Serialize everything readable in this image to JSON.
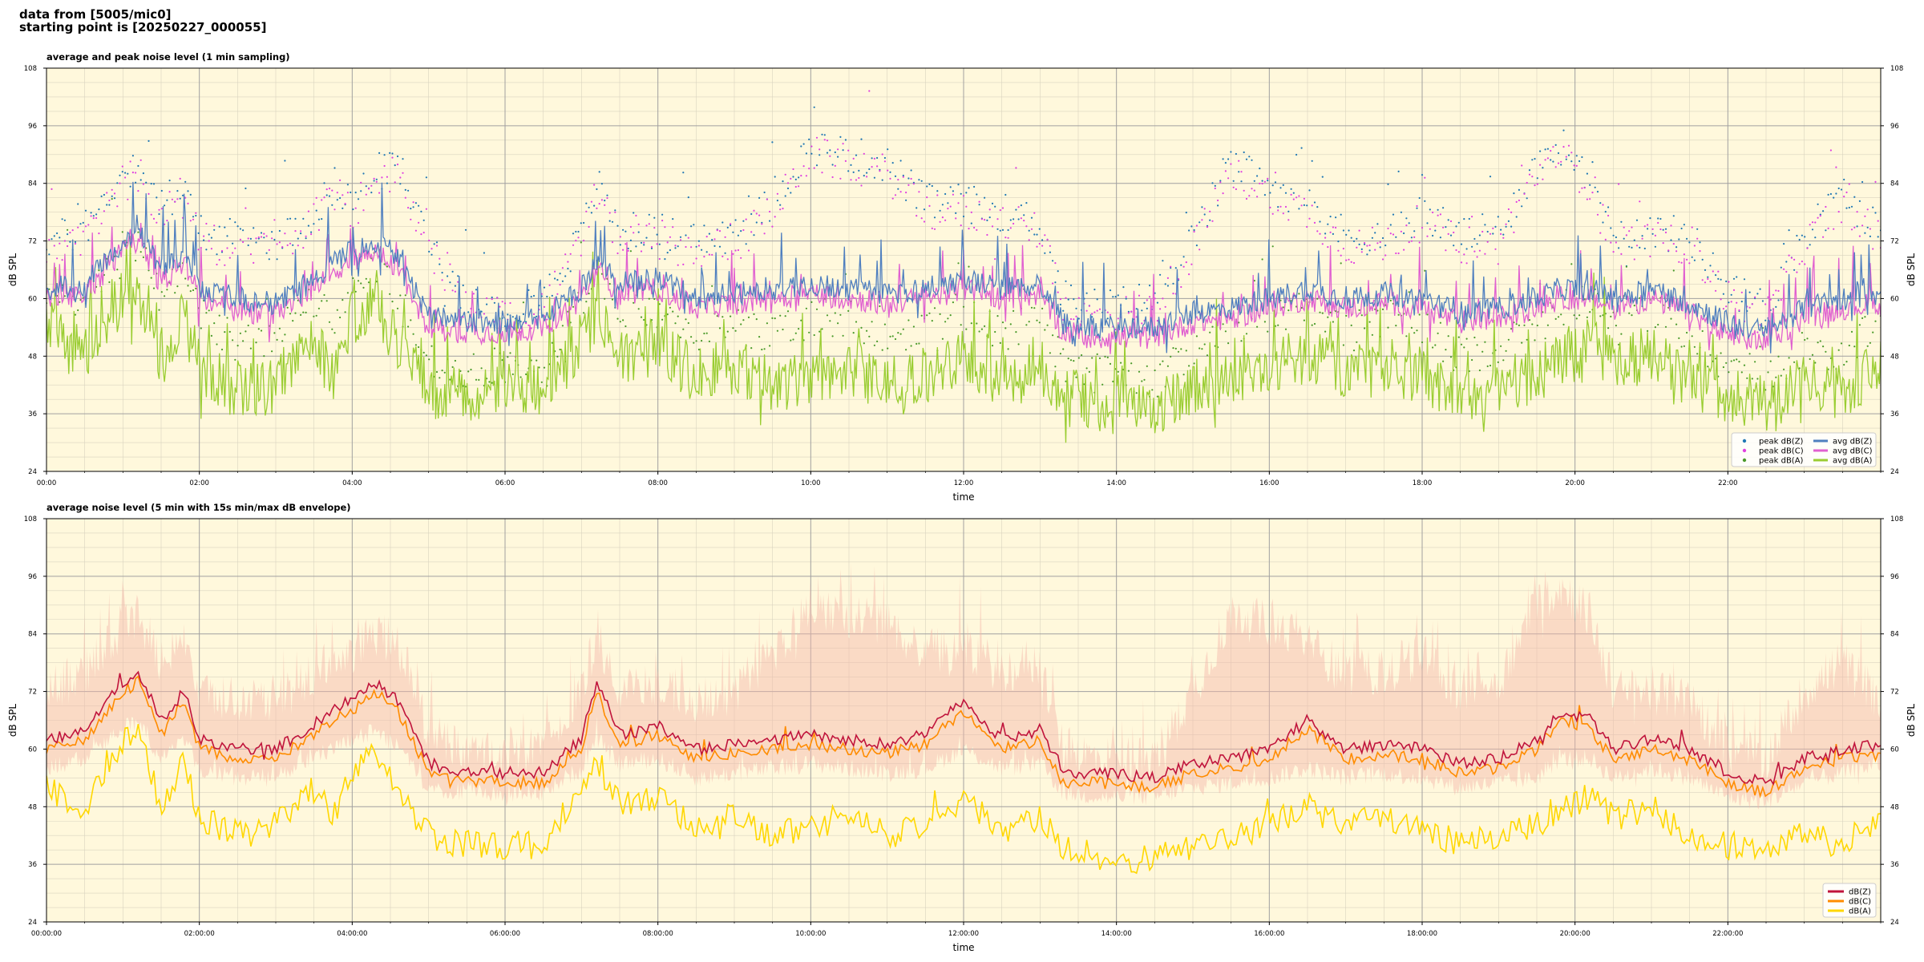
{
  "header": {
    "line1": "data from [5005/mic0]",
    "line2": "starting point is [20250227_000055]"
  },
  "colors": {
    "background": "#fff8dc",
    "grid_major": "#a0a0a0",
    "grid_minor": "#d9d3bf",
    "peak_z": "#1f77b4",
    "peak_c": "#e040e0",
    "peak_a": "#4a9a2a",
    "avg_z": "#4f7fbf",
    "avg_c": "#e060d0",
    "avg_a": "#9acd32",
    "line_z": "#c0143c",
    "line_c": "#ff8c00",
    "line_a": "#ffd700",
    "envelope": "#f4b6a8"
  },
  "chart_data": [
    {
      "type": "line",
      "title": "average and peak noise level (1 min sampling)",
      "xlabel": "time",
      "ylabel": "dB SPL",
      "ylim": [
        24,
        108
      ],
      "yticks": [
        24,
        36,
        48,
        60,
        72,
        84,
        96,
        108
      ],
      "xlim": [
        0,
        24
      ],
      "xticks": [
        0,
        2,
        4,
        6,
        8,
        10,
        12,
        14,
        16,
        18,
        20,
        22
      ],
      "xtick_labels": [
        "00:00",
        "02:00",
        "04:00",
        "06:00",
        "08:00",
        "10:00",
        "12:00",
        "14:00",
        "16:00",
        "18:00",
        "20:00",
        "22:00"
      ],
      "grid": true,
      "legend": {
        "position": "bottom-right",
        "columns": 2,
        "entries": [
          "peak dB(Z)",
          "peak dB(C)",
          "peak dB(A)",
          "avg dB(Z)",
          "avg dB(C)",
          "avg dB(A)"
        ]
      },
      "x_hours": [
        0,
        0.5,
        1.0,
        1.2,
        1.5,
        1.8,
        2.0,
        2.5,
        3.0,
        3.4,
        3.8,
        4.0,
        4.3,
        4.6,
        5.0,
        5.5,
        6.0,
        6.5,
        7.0,
        7.2,
        7.5,
        8.0,
        8.5,
        9.0,
        9.5,
        10.0,
        10.5,
        11.0,
        11.5,
        12.0,
        12.5,
        13.0,
        13.3,
        13.8,
        14.5,
        15.0,
        15.5,
        16.0,
        16.5,
        17.0,
        17.5,
        18.0,
        18.5,
        19.0,
        19.5,
        19.8,
        20.2,
        20.5,
        21.0,
        21.5,
        22.0,
        22.5,
        23.0,
        23.5,
        24.0
      ],
      "series": [
        {
          "name": "avg dB(Z)",
          "values": [
            62,
            63,
            72,
            74,
            66,
            70,
            62,
            60,
            59,
            63,
            68,
            70,
            72,
            69,
            56,
            55,
            55,
            56,
            62,
            68,
            63,
            64,
            60,
            61,
            62,
            63,
            62,
            61,
            62,
            64,
            62,
            63,
            55,
            54,
            54,
            57,
            58,
            60,
            62,
            60,
            61,
            60,
            57,
            58,
            60,
            62,
            62,
            60,
            62,
            59,
            55,
            53,
            58,
            60,
            61
          ]
        },
        {
          "name": "avg dB(C)",
          "values": [
            60,
            61,
            70,
            72,
            63,
            68,
            60,
            57,
            57,
            61,
            66,
            68,
            70,
            66,
            54,
            53,
            53,
            54,
            60,
            66,
            61,
            62,
            58,
            59,
            60,
            61,
            60,
            59,
            60,
            62,
            60,
            61,
            53,
            52,
            52,
            55,
            56,
            58,
            60,
            58,
            59,
            58,
            55,
            56,
            58,
            60,
            60,
            58,
            60,
            57,
            52,
            51,
            56,
            58,
            59
          ]
        },
        {
          "name": "avg dB(A)",
          "values": [
            54,
            48,
            60,
            62,
            48,
            56,
            46,
            40,
            42,
            52,
            44,
            56,
            60,
            50,
            41,
            40,
            42,
            40,
            52,
            56,
            48,
            50,
            44,
            46,
            42,
            44,
            46,
            42,
            44,
            48,
            42,
            46,
            40,
            38,
            37,
            42,
            44,
            46,
            48,
            44,
            46,
            44,
            40,
            42,
            44,
            48,
            50,
            46,
            48,
            42,
            40,
            38,
            42,
            40,
            46
          ]
        },
        {
          "name": "peak dB(Z)",
          "values": [
            72,
            74,
            86,
            88,
            80,
            82,
            74,
            72,
            72,
            76,
            84,
            80,
            86,
            88,
            72,
            60,
            58,
            60,
            73,
            84,
            74,
            74,
            72,
            73,
            80,
            92,
            90,
            88,
            80,
            80,
            78,
            76,
            60,
            58,
            60,
            72,
            88,
            84,
            80,
            73,
            73,
            78,
            73,
            74,
            88,
            92,
            86,
            74,
            74,
            73,
            62,
            58,
            73,
            82,
            74
          ]
        },
        {
          "name": "peak dB(C)",
          "values": [
            70,
            72,
            84,
            86,
            78,
            80,
            72,
            70,
            70,
            74,
            82,
            78,
            84,
            86,
            70,
            58,
            56,
            58,
            71,
            82,
            72,
            72,
            70,
            71,
            78,
            90,
            88,
            86,
            78,
            78,
            76,
            74,
            58,
            56,
            58,
            70,
            86,
            82,
            78,
            71,
            71,
            76,
            71,
            72,
            86,
            90,
            84,
            72,
            72,
            71,
            60,
            56,
            71,
            80,
            72
          ]
        },
        {
          "name": "peak dB(A)",
          "values": [
            62,
            60,
            70,
            72,
            60,
            66,
            58,
            50,
            52,
            60,
            56,
            64,
            68,
            60,
            48,
            45,
            46,
            44,
            60,
            64,
            58,
            58,
            52,
            54,
            52,
            56,
            56,
            52,
            54,
            58,
            52,
            56,
            46,
            44,
            42,
            50,
            54,
            56,
            58,
            54,
            56,
            54,
            48,
            50,
            54,
            58,
            60,
            56,
            58,
            52,
            46,
            44,
            50,
            48,
            56
          ]
        }
      ]
    },
    {
      "type": "line",
      "title": "average noise level (5 min with 15s min/max dB envelope)",
      "xlabel": "time",
      "ylabel": "dB SPL",
      "ylim": [
        24,
        108
      ],
      "yticks": [
        24,
        36,
        48,
        60,
        72,
        84,
        96,
        108
      ],
      "xlim": [
        0,
        24
      ],
      "xticks": [
        0,
        2,
        4,
        6,
        8,
        10,
        12,
        14,
        16,
        18,
        20,
        22
      ],
      "xtick_labels": [
        "00:00:00",
        "02:00:00",
        "04:00:00",
        "06:00:00",
        "08:00:00",
        "10:00:00",
        "12:00:00",
        "14:00:00",
        "16:00:00",
        "18:00:00",
        "20:00:00",
        "22:00:00"
      ],
      "grid": true,
      "legend": {
        "position": "bottom-right",
        "columns": 1,
        "entries": [
          "dB(Z)",
          "dB(C)",
          "dB(A)"
        ]
      },
      "x_hours": [
        0,
        0.5,
        1.0,
        1.2,
        1.5,
        1.8,
        2.0,
        2.5,
        3.0,
        3.4,
        3.8,
        4.0,
        4.3,
        4.6,
        5.0,
        5.5,
        6.0,
        6.5,
        7.0,
        7.2,
        7.5,
        8.0,
        8.5,
        9.0,
        9.5,
        10.0,
        10.5,
        11.0,
        11.5,
        12.0,
        12.5,
        13.0,
        13.3,
        13.8,
        14.5,
        15.0,
        15.5,
        16.0,
        16.5,
        17.0,
        17.5,
        18.0,
        18.5,
        19.0,
        19.5,
        19.8,
        20.2,
        20.5,
        21.0,
        21.5,
        22.0,
        22.5,
        23.0,
        23.5,
        24.0
      ],
      "series": [
        {
          "name": "dB(Z)",
          "values": [
            62,
            64,
            74,
            76,
            66,
            72,
            62,
            60,
            60,
            64,
            69,
            70,
            74,
            70,
            57,
            55,
            55,
            55,
            62,
            74,
            63,
            65,
            60,
            61,
            62,
            63,
            62,
            61,
            63,
            70,
            62,
            64,
            55,
            55,
            54,
            57,
            58,
            60,
            66,
            60,
            61,
            60,
            57,
            58,
            62,
            68,
            66,
            60,
            62,
            60,
            55,
            53,
            58,
            60,
            61
          ]
        },
        {
          "name": "dB(C)",
          "values": [
            60,
            62,
            72,
            74,
            64,
            70,
            60,
            58,
            58,
            62,
            67,
            68,
            72,
            68,
            55,
            53,
            53,
            53,
            60,
            72,
            61,
            63,
            58,
            59,
            60,
            61,
            60,
            59,
            61,
            68,
            60,
            62,
            53,
            53,
            52,
            55,
            56,
            58,
            64,
            58,
            59,
            58,
            55,
            56,
            60,
            66,
            64,
            58,
            60,
            58,
            53,
            51,
            56,
            58,
            59
          ]
        },
        {
          "name": "dB(A)",
          "values": [
            52,
            48,
            62,
            64,
            48,
            58,
            46,
            42,
            44,
            52,
            46,
            56,
            60,
            50,
            42,
            40,
            40,
            40,
            52,
            58,
            48,
            50,
            44,
            46,
            42,
            44,
            46,
            42,
            44,
            50,
            42,
            46,
            40,
            37,
            37,
            40,
            42,
            44,
            48,
            44,
            46,
            44,
            40,
            42,
            44,
            48,
            50,
            46,
            48,
            42,
            40,
            38,
            42,
            40,
            46
          ]
        }
      ],
      "envelope": {
        "min": [
          56,
          58,
          64,
          66,
          58,
          62,
          56,
          54,
          54,
          58,
          60,
          62,
          64,
          60,
          52,
          51,
          51,
          51,
          56,
          62,
          57,
          58,
          54,
          55,
          56,
          57,
          56,
          55,
          56,
          60,
          56,
          57,
          51,
          50,
          50,
          52,
          53,
          54,
          56,
          54,
          55,
          54,
          52,
          53,
          54,
          58,
          58,
          54,
          56,
          54,
          50,
          49,
          53,
          55,
          57
        ],
        "max": [
          72,
          76,
          86,
          88,
          78,
          84,
          72,
          70,
          70,
          74,
          80,
          80,
          84,
          82,
          64,
          60,
          59,
          60,
          72,
          84,
          72,
          74,
          70,
          72,
          80,
          90,
          88,
          86,
          80,
          82,
          76,
          78,
          60,
          58,
          58,
          72,
          88,
          86,
          82,
          76,
          76,
          80,
          72,
          74,
          90,
          94,
          88,
          72,
          72,
          70,
          60,
          58,
          72,
          78,
          70
        ]
      }
    }
  ]
}
